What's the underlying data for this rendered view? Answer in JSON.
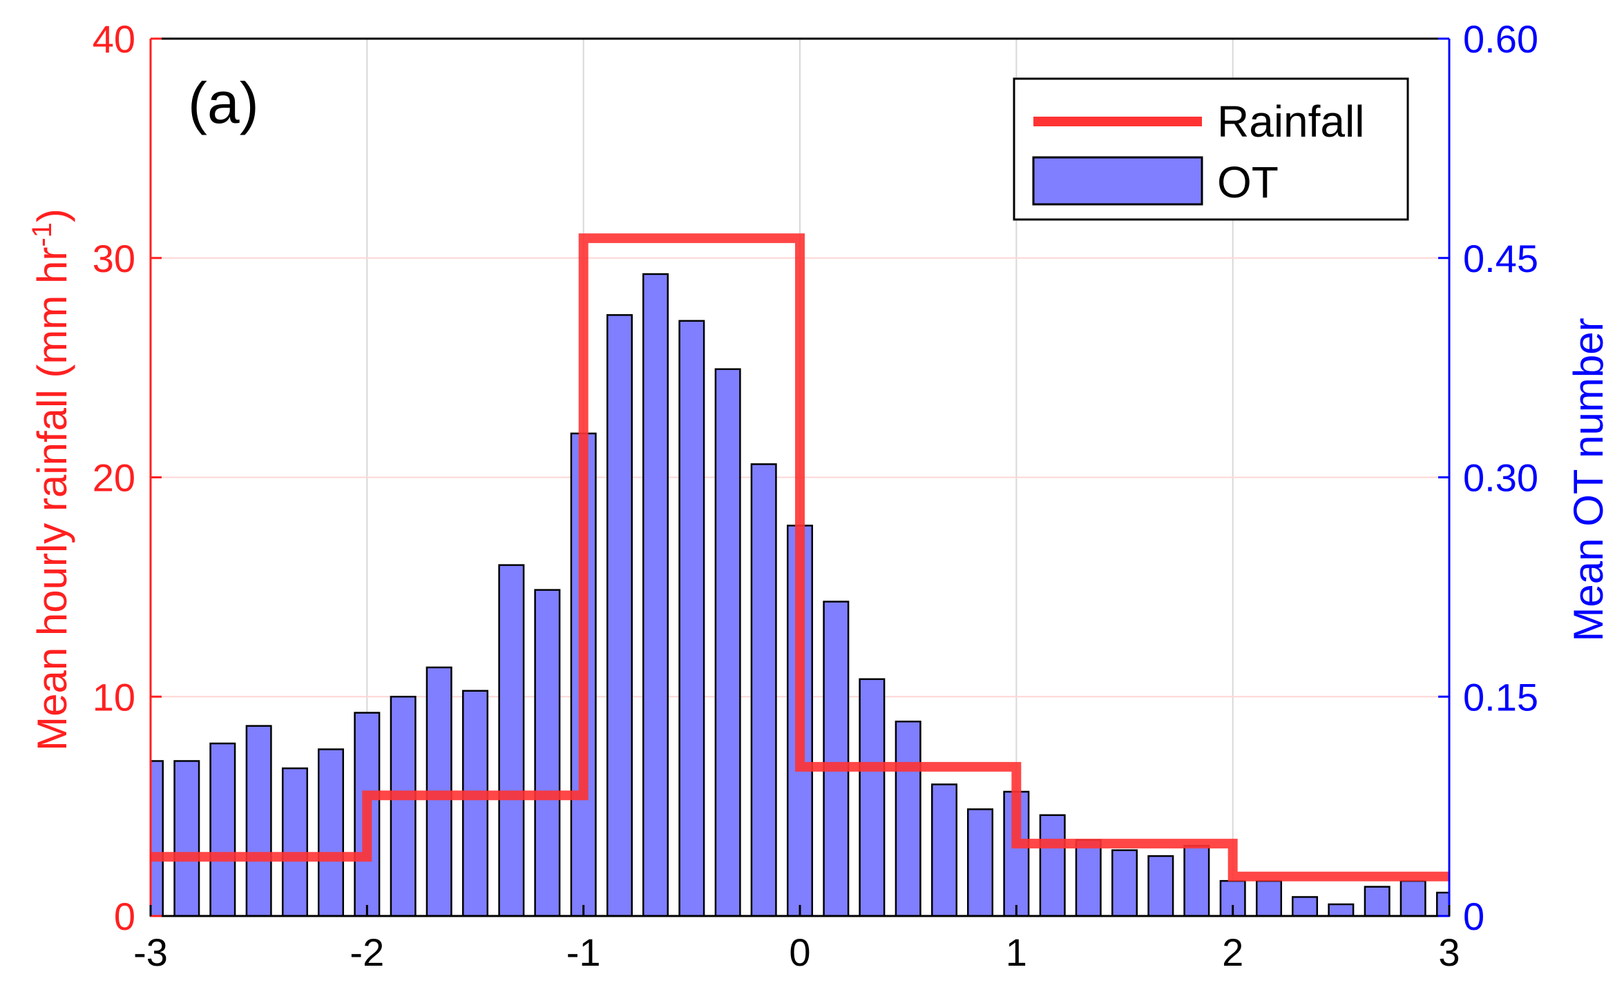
{
  "chart_data": {
    "type": "bar",
    "panel_label": "(a)",
    "xlim": [
      -3,
      3
    ],
    "xticks": [
      "-3",
      "-2",
      "-1",
      "0",
      "1",
      "2",
      "3"
    ],
    "ylabel_left": "Mean hourly rainfall (mm hr",
    "ylabel_left_sup": "-1",
    "ylabel_left_tail": ")",
    "ylabel_right": "Mean OT number",
    "ylim_left": [
      0,
      40
    ],
    "ylim_right": [
      0,
      0.6
    ],
    "yticks_left": [
      "0",
      "10",
      "20",
      "30",
      "40"
    ],
    "yticks_right": [
      "0",
      "0.15",
      "0.30",
      "0.45",
      "0.60"
    ],
    "grid": true,
    "legend_position": "top-right",
    "colors": {
      "rainfall": "#ff3333",
      "ot_fill": "#7f7fff",
      "ot_edge": "#000000",
      "left_axis": "#ff2020",
      "right_axis": "#0000ff"
    },
    "series": [
      {
        "name": "Rainfall",
        "type": "step",
        "axis": "left",
        "segments": [
          {
            "x0": -3,
            "x1": -2,
            "y": 2.7
          },
          {
            "x0": -2,
            "x1": -1,
            "y": 5.5
          },
          {
            "x0": -1,
            "x1": 0,
            "y": 30.9
          },
          {
            "x0": 0,
            "x1": 1,
            "y": 6.8
          },
          {
            "x0": 1,
            "x1": 2,
            "y": 3.3
          },
          {
            "x0": 2,
            "x1": 3,
            "y": 1.8
          }
        ]
      },
      {
        "name": "OT",
        "type": "bar",
        "axis": "right",
        "x": [
          -3,
          -2.833,
          -2.667,
          -2.5,
          -2.333,
          -2.167,
          -2,
          -1.833,
          -1.667,
          -1.5,
          -1.333,
          -1.167,
          -1,
          -0.833,
          -0.667,
          -0.5,
          -0.333,
          -0.167,
          0,
          0.167,
          0.333,
          0.5,
          0.667,
          0.833,
          1,
          1.167,
          1.333,
          1.5,
          1.667,
          1.833,
          2,
          2.167,
          2.333,
          2.5,
          2.667,
          2.833,
          3
        ],
        "values": [
          0.106,
          0.106,
          0.118,
          0.13,
          0.101,
          0.114,
          0.139,
          0.15,
          0.17,
          0.154,
          0.24,
          0.223,
          0.33,
          0.411,
          0.439,
          0.407,
          0.374,
          0.309,
          0.267,
          0.215,
          0.162,
          0.133,
          0.09,
          0.073,
          0.085,
          0.069,
          0.052,
          0.045,
          0.041,
          0.048,
          0.024,
          0.024,
          0.013,
          0.008,
          0.02,
          0.024,
          0.016
        ]
      }
    ]
  }
}
